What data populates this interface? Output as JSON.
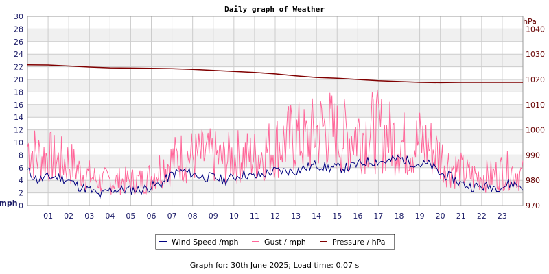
{
  "colors": {
    "wind": "#000080",
    "gust": "#ff6699",
    "pressure": "#800000",
    "band": "#f0f0f0",
    "grid": "#cccccc"
  },
  "footer": "Graph for: 30th June 2025; Load time: 0.07 s",
  "chart_data": {
    "type": "line",
    "title": "Daily graph of Weather",
    "ylabel_left": "mph",
    "ylabel_right": "hPa",
    "xlim": [
      0,
      24
    ],
    "ylim_left": [
      0,
      30
    ],
    "ylim_right": [
      970,
      1045
    ],
    "x_ticks": [
      1,
      2,
      3,
      4,
      5,
      6,
      7,
      8,
      9,
      10,
      11,
      12,
      13,
      14,
      15,
      16,
      17,
      18,
      19,
      20,
      21,
      22,
      23
    ],
    "x_tick_labels": [
      "01",
      "02",
      "03",
      "04",
      "05",
      "06",
      "07",
      "08",
      "09",
      "10",
      "11",
      "12",
      "13",
      "14",
      "15",
      "16",
      "17",
      "18",
      "19",
      "20",
      "21",
      "22",
      "23"
    ],
    "y_left_ticks": [
      0,
      2,
      4,
      6,
      8,
      10,
      12,
      14,
      16,
      18,
      20,
      22,
      24,
      26,
      28,
      30
    ],
    "y_right_ticks": [
      970,
      980,
      990,
      1000,
      1010,
      1020,
      1030,
      1040
    ],
    "legend": [
      "Wind Speed /mph",
      "Gust / mph",
      "Pressure / hPa"
    ],
    "legend_position": "bottom-center",
    "series": [
      {
        "name": "Wind Speed /mph",
        "axis": "left",
        "x": [
          0,
          0.5,
          1,
          1.5,
          2,
          2.5,
          3,
          3.5,
          4,
          4.5,
          5,
          5.5,
          6,
          6.5,
          7,
          7.5,
          8,
          8.5,
          9,
          9.5,
          10,
          10.5,
          11,
          11.5,
          12,
          12.5,
          13,
          13.5,
          14,
          14.5,
          15,
          15.5,
          16,
          16.5,
          17,
          17.5,
          18,
          18.5,
          19,
          19.5,
          20,
          20.5,
          21,
          21.5,
          22,
          22.5,
          23,
          23.5,
          24
        ],
        "values": [
          5.5,
          4,
          4.5,
          4.5,
          4,
          3,
          2.5,
          1.5,
          2.5,
          2.5,
          2.5,
          2.5,
          3,
          3.5,
          5,
          5.5,
          5,
          4.5,
          4.5,
          4,
          4.5,
          5,
          4.5,
          5,
          5.5,
          5.5,
          5.5,
          6,
          6.5,
          6,
          6,
          6,
          6.5,
          7,
          7,
          7,
          7.5,
          7,
          6.5,
          6.5,
          5,
          4.5,
          3.5,
          3,
          3,
          3,
          3,
          3.5,
          3
        ]
      },
      {
        "name": "Gust / mph",
        "axis": "left",
        "x": [
          0,
          0.5,
          1,
          1.5,
          2,
          2.5,
          3,
          3.5,
          4,
          4.5,
          5,
          5.5,
          6,
          6.5,
          7,
          7.5,
          8,
          8.5,
          9,
          9.5,
          10,
          10.5,
          11,
          11.5,
          12,
          12.5,
          13,
          13.5,
          14,
          14.5,
          15,
          15.5,
          16,
          16.5,
          17,
          17.5,
          18,
          18.5,
          19,
          19.5,
          20,
          20.5,
          21,
          21.5,
          22,
          22.5,
          23,
          23.5,
          24
        ],
        "values": [
          12,
          10,
          10,
          9,
          9,
          7,
          6,
          5,
          5,
          5,
          5,
          5,
          6,
          8,
          9,
          10,
          10,
          10,
          10,
          9,
          10,
          10,
          10,
          11,
          12,
          13,
          14,
          13,
          15,
          16,
          14,
          14,
          15,
          15,
          15,
          14,
          13,
          12,
          13,
          12,
          10,
          8,
          7,
          6,
          6,
          6,
          7,
          7,
          6
        ]
      },
      {
        "name": "Pressure / hPa",
        "axis": "right",
        "x": [
          0,
          1,
          2,
          3,
          4,
          5,
          6,
          7,
          8,
          9,
          10,
          11,
          12,
          13,
          14,
          15,
          16,
          17,
          18,
          19,
          20,
          21,
          22,
          23,
          24
        ],
        "values": [
          1025.8,
          1025.7,
          1025.3,
          1024.9,
          1024.6,
          1024.5,
          1024.4,
          1024.3,
          1024.0,
          1023.6,
          1023.2,
          1022.8,
          1022.2,
          1021.4,
          1020.8,
          1020.5,
          1020.0,
          1019.5,
          1019.2,
          1018.9,
          1018.8,
          1018.9,
          1018.9,
          1018.9,
          1018.9
        ]
      }
    ]
  }
}
